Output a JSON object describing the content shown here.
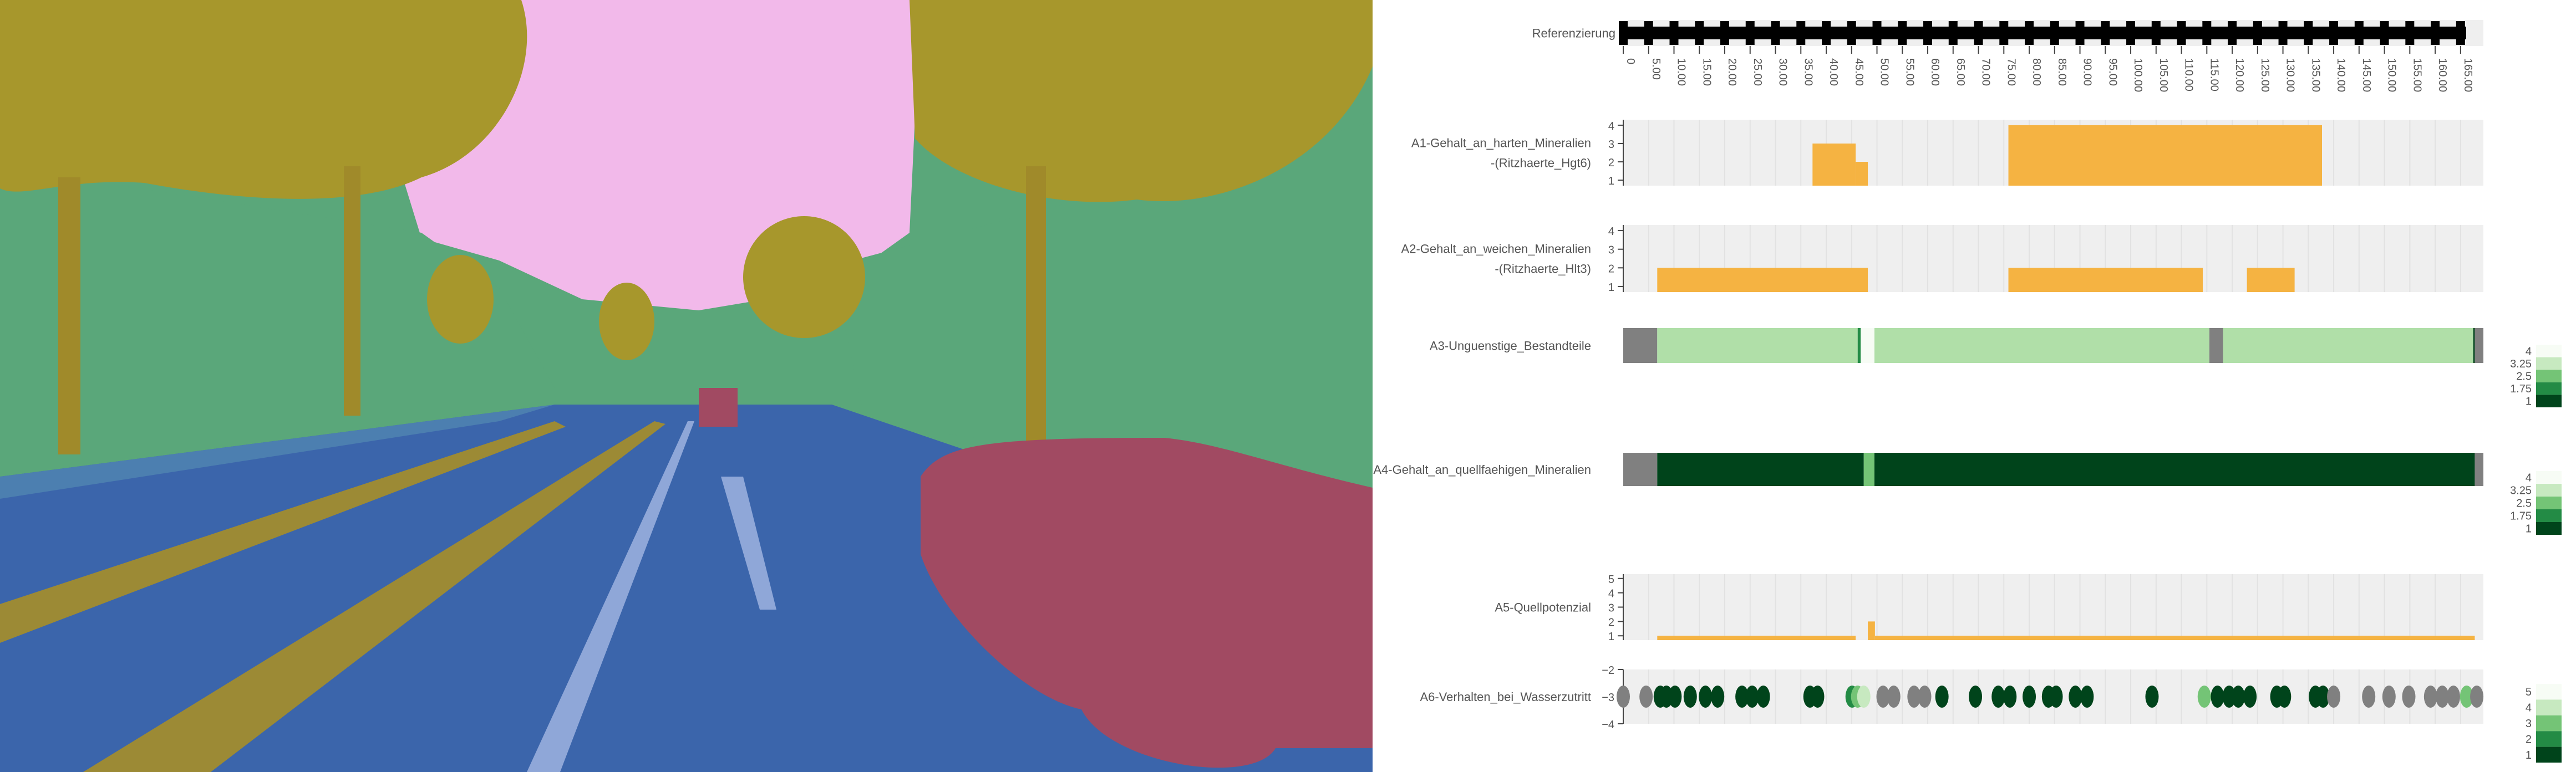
{
  "colors": {
    "sky": "#f2b9ea",
    "vegetation": "#a7972c",
    "building": "#5aa77a",
    "road": "#3b65ab",
    "car": "#a14a62",
    "sidewalk": "#4c7fb0",
    "marking": "#8fa7d8",
    "track": "#9c8a35",
    "bar": "#f5b342",
    "plot_bg": "#efefef",
    "grid": "#e2e2e2",
    "missing": "#808080"
  },
  "chart_data": {
    "type": "multi-track log",
    "x": {
      "range": [
        0,
        169.5
      ],
      "ticks": [
        0,
        5,
        10,
        15,
        20,
        25,
        30,
        35,
        40,
        45,
        50,
        55,
        60,
        65,
        70,
        75,
        80,
        85,
        90,
        95,
        100,
        105,
        110,
        115,
        120,
        125,
        130,
        135,
        140,
        145,
        150,
        155,
        160,
        165
      ],
      "tick_labels": [
        "0",
        "5.00",
        "10.00",
        "15.00",
        "20.00",
        "25.00",
        "30.00",
        "35.00",
        "40.00",
        "45.00",
        "50.00",
        "55.00",
        "60.00",
        "65.00",
        "70.00",
        "75.00",
        "80.00",
        "85.00",
        "90.00",
        "95.00",
        "100.00",
        "105.00",
        "110.00",
        "115.00",
        "120.00",
        "125.00",
        "130.00",
        "135.00",
        "140.00",
        "145.00",
        "150.00",
        "155.00",
        "160.00",
        "165.00"
      ]
    },
    "tracks": [
      {
        "id": "ref",
        "type": "reference",
        "label": "Referenzierung"
      },
      {
        "id": "a1",
        "type": "bar",
        "label_lines": [
          "A1-Gehalt_an_harten_Mineralien",
          "-(Ritzhaerte_Hgt6)"
        ],
        "ylim": [
          0.7,
          4.3
        ],
        "yticks": [
          1,
          2,
          3,
          4
        ],
        "segments": [
          {
            "from": 37.3,
            "to": 45.8,
            "value": 3
          },
          {
            "from": 45.8,
            "to": 48.2,
            "value": 2
          },
          {
            "from": 75.9,
            "to": 137.7,
            "value": 4
          }
        ]
      },
      {
        "id": "a2",
        "type": "bar",
        "label_lines": [
          "A2-Gehalt_an_weichen_Mineralien",
          "-(Ritzhaerte_Hlt3)"
        ],
        "ylim": [
          0.7,
          4.3
        ],
        "yticks": [
          1,
          2,
          3,
          4
        ],
        "segments": [
          {
            "from": 6.7,
            "to": 48.2,
            "value": 2
          },
          {
            "from": 75.9,
            "to": 114.2,
            "value": 2
          },
          {
            "from": 122.9,
            "to": 132.3,
            "value": 2
          }
        ]
      },
      {
        "id": "a3",
        "type": "heatmap",
        "label_lines": [
          "A3-Unguenstige_Bestandteile"
        ],
        "colorbar": {
          "ticks": [
            "4",
            "3.25",
            "2.5",
            "1.75",
            "1"
          ]
        },
        "segments": [
          {
            "from": 0,
            "to": 6.7,
            "value": null
          },
          {
            "from": 6.7,
            "to": 46.2,
            "value": 3.25
          },
          {
            "from": 46.2,
            "to": 46.8,
            "value": 2
          },
          {
            "from": 46.8,
            "to": 49.5,
            "value": 4
          },
          {
            "from": 49.5,
            "to": 115.5,
            "value": 3.25
          },
          {
            "from": 115.5,
            "to": 118.2,
            "value": null
          },
          {
            "from": 118.2,
            "to": 167.5,
            "value": 3.25
          },
          {
            "from": 167.5,
            "to": 167.8,
            "value": 1
          },
          {
            "from": 167.8,
            "to": 169.5,
            "value": null
          }
        ]
      },
      {
        "id": "a4",
        "type": "heatmap",
        "label_lines": [
          "A4-Gehalt_an_quellfaehigen_Mineralien"
        ],
        "colorbar": {
          "ticks": [
            "4",
            "3.25",
            "2.5",
            "1.75",
            "1"
          ]
        },
        "segments": [
          {
            "from": 0,
            "to": 6.7,
            "value": null
          },
          {
            "from": 6.7,
            "to": 47.4,
            "value": 1
          },
          {
            "from": 47.4,
            "to": 49.5,
            "value": 2.5
          },
          {
            "from": 49.5,
            "to": 167.8,
            "value": 1
          },
          {
            "from": 167.8,
            "to": 169.5,
            "value": null
          }
        ]
      },
      {
        "id": "a5",
        "type": "bar",
        "label_lines": [
          "A5-Quellpotenzial"
        ],
        "ylim": [
          0.7,
          5.3
        ],
        "yticks": [
          1,
          2,
          3,
          4,
          5
        ],
        "segments": [
          {
            "from": 6.7,
            "to": 45.8,
            "value": 1
          },
          {
            "from": 48.2,
            "to": 49.6,
            "value": 2
          },
          {
            "from": 49.6,
            "to": 167.8,
            "value": 1
          }
        ]
      },
      {
        "id": "a6",
        "type": "scatter",
        "label_lines": [
          "A6-Verhalten_bei_Wasserzutritt"
        ],
        "ylim": [
          -4,
          -2
        ],
        "yticks": [
          -2,
          -3,
          -4
        ],
        "ytick_labels": [
          "−2",
          "−3",
          "−4"
        ],
        "colorbar": {
          "ticks": [
            "5",
            "4",
            "3",
            "2",
            "1"
          ]
        },
        "points": [
          {
            "x": 0,
            "c": null
          },
          {
            "x": 4.5,
            "c": null
          },
          {
            "x": 7.3,
            "c": 1
          },
          {
            "x": 8.5,
            "c": 1
          },
          {
            "x": 10.2,
            "c": 1
          },
          {
            "x": 13.2,
            "c": 1
          },
          {
            "x": 16.2,
            "c": 1
          },
          {
            "x": 18.6,
            "c": 1
          },
          {
            "x": 23.4,
            "c": 1
          },
          {
            "x": 25.4,
            "c": 1
          },
          {
            "x": 27.6,
            "c": 1
          },
          {
            "x": 36.8,
            "c": 1
          },
          {
            "x": 38.3,
            "c": 1
          },
          {
            "x": 45.1,
            "c": 2
          },
          {
            "x": 46.2,
            "c": 3
          },
          {
            "x": 47.4,
            "c": 4
          },
          {
            "x": 51.2,
            "c": null
          },
          {
            "x": 53.3,
            "c": null
          },
          {
            "x": 57.3,
            "c": null
          },
          {
            "x": 59.4,
            "c": null
          },
          {
            "x": 62.8,
            "c": 1
          },
          {
            "x": 69.4,
            "c": 1
          },
          {
            "x": 73.9,
            "c": 1
          },
          {
            "x": 76.2,
            "c": 1
          },
          {
            "x": 80,
            "c": 1
          },
          {
            "x": 83.8,
            "c": 1
          },
          {
            "x": 85.3,
            "c": 1
          },
          {
            "x": 89.1,
            "c": 1
          },
          {
            "x": 91.4,
            "c": 1
          },
          {
            "x": 104.2,
            "c": 1
          },
          {
            "x": 114.5,
            "c": 3
          },
          {
            "x": 117.1,
            "c": 1
          },
          {
            "x": 119.4,
            "c": 1
          },
          {
            "x": 121.2,
            "c": 1
          },
          {
            "x": 123.5,
            "c": 1
          },
          {
            "x": 128.8,
            "c": 1
          },
          {
            "x": 130.3,
            "c": 1
          },
          {
            "x": 136.4,
            "c": 1
          },
          {
            "x": 137.9,
            "c": 1
          },
          {
            "x": 140,
            "c": null
          },
          {
            "x": 146.9,
            "c": null
          },
          {
            "x": 150.9,
            "c": null
          },
          {
            "x": 154.8,
            "c": null
          },
          {
            "x": 159.1,
            "c": null
          },
          {
            "x": 161.4,
            "c": null
          },
          {
            "x": 163.6,
            "c": null
          },
          {
            "x": 166.2,
            "c": 3
          },
          {
            "x": 168.2,
            "c": null
          }
        ]
      }
    ]
  }
}
